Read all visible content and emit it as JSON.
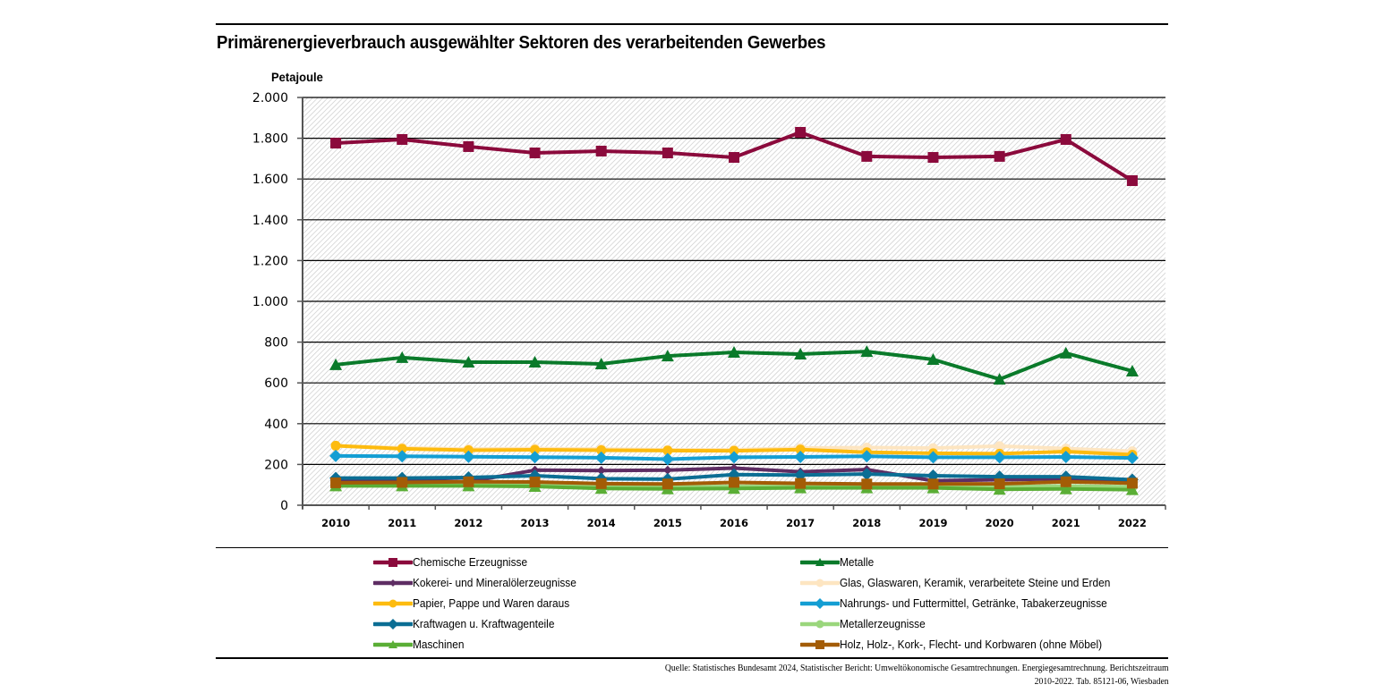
{
  "chart_data": {
    "type": "line",
    "title": "Primärenergieverbrauch ausgewählter Sektoren des verarbeitenden Gewerbes",
    "ylabel": "Petajoule",
    "xlabel": "",
    "x": [
      "2010",
      "2011",
      "2012",
      "2013",
      "2014",
      "2015",
      "2016",
      "2017",
      "2018",
      "2019",
      "2020",
      "2021",
      "2022"
    ],
    "ylim": [
      0,
      2000
    ],
    "yticks": [
      0,
      200,
      400,
      600,
      800,
      1000,
      1200,
      1400,
      1600,
      1800,
      2000
    ],
    "ytick_labels": [
      "0",
      "200",
      "400",
      "600",
      "800",
      "1.000",
      "1.200",
      "1.400",
      "1.600",
      "1.800",
      "2.000"
    ],
    "grid": true,
    "legend_position": "bottom",
    "series": [
      {
        "name": "Chemische Erzeugnisse",
        "color": "#8b0a3c",
        "marker": "square",
        "values": [
          1776,
          1794,
          1759,
          1728,
          1737,
          1728,
          1706,
          1829,
          1711,
          1706,
          1711,
          1794,
          1592
        ]
      },
      {
        "name": "Metalle",
        "color": "#0a7a2a",
        "marker": "triangle",
        "values": [
          689,
          724,
          702,
          702,
          693,
          732,
          750,
          741,
          754,
          715,
          618,
          746,
          658
        ]
      },
      {
        "name": "Kokerei- und Mineralölerzeugnisse",
        "color": "#5e2d63",
        "marker": "diamond-small",
        "values": [
          125,
          125,
          115,
          172,
          170,
          172,
          182,
          164,
          175,
          120,
          125,
          130,
          115
        ]
      },
      {
        "name": "Glas, Glaswaren, Keramik, verarbeitete Steine und Erden",
        "color": "#fde5c1",
        "marker": "circle",
        "values": [
          290,
          282,
          275,
          278,
          275,
          272,
          272,
          280,
          283,
          280,
          290,
          278,
          265
        ]
      },
      {
        "name": "Papier, Pappe und Waren daraus",
        "color": "#fdbb0f",
        "marker": "circle",
        "values": [
          292,
          277,
          270,
          272,
          270,
          268,
          267,
          273,
          260,
          255,
          253,
          263,
          248
        ]
      },
      {
        "name": "Nahrungs- und Futtermittel, Getränke, Tabakerzeugnisse",
        "color": "#149ed3",
        "marker": "diamond",
        "values": [
          242,
          240,
          238,
          236,
          233,
          226,
          235,
          237,
          240,
          235,
          235,
          237,
          232
        ]
      },
      {
        "name": "Kraftwagen u. Kraftwagenteile",
        "color": "#0b6e94",
        "marker": "diamond",
        "values": [
          133,
          133,
          136,
          145,
          130,
          128,
          150,
          148,
          153,
          145,
          140,
          140,
          125
        ]
      },
      {
        "name": "Metallerzeugnisse",
        "color": "#9ad67c",
        "marker": "circle",
        "values": [
          100,
          100,
          100,
          100,
          90,
          90,
          92,
          95,
          95,
          95,
          90,
          95,
          90
        ]
      },
      {
        "name": "Maschinen",
        "color": "#5aae35",
        "marker": "triangle",
        "values": [
          95,
          95,
          95,
          92,
          82,
          80,
          82,
          85,
          85,
          85,
          78,
          80,
          76
        ]
      },
      {
        "name": "Holz, Holz-, Kork-, Flecht- und Korbwaren (ohne Möbel)",
        "color": "#a35c06",
        "marker": "square",
        "values": [
          110,
          112,
          115,
          114,
          106,
          104,
          112,
          107,
          104,
          104,
          105,
          115,
          108
        ]
      }
    ]
  },
  "legend": [
    {
      "label": "Chemische Erzeugnisse"
    },
    {
      "label": "Metalle"
    },
    {
      "label": "Kokerei- und Mineralölerzeugnisse"
    },
    {
      "label": "Glas, Glaswaren, Keramik, verarbeitete Steine und Erden"
    },
    {
      "label": "Papier, Pappe und Waren daraus"
    },
    {
      "label": "Nahrungs- und Futtermittel, Getränke, Tabakerzeugnisse"
    },
    {
      "label": "Kraftwagen u. Kraftwagenteile"
    },
    {
      "label": "Metallerzeugnisse"
    },
    {
      "label": "Maschinen"
    },
    {
      "label": "Holz, Holz-, Kork-, Flecht- und Korbwaren (ohne Möbel)"
    }
  ],
  "source": {
    "line1": "Quelle: Statistisches Bundesamt 2024, Statistischer Bericht: Umweltökonomische Gesamtrechnungen. Energiegesamtrechnung. Berichtszeitraum",
    "line2": "2010-2022. Tab. 85121-06, Wiesbaden"
  }
}
